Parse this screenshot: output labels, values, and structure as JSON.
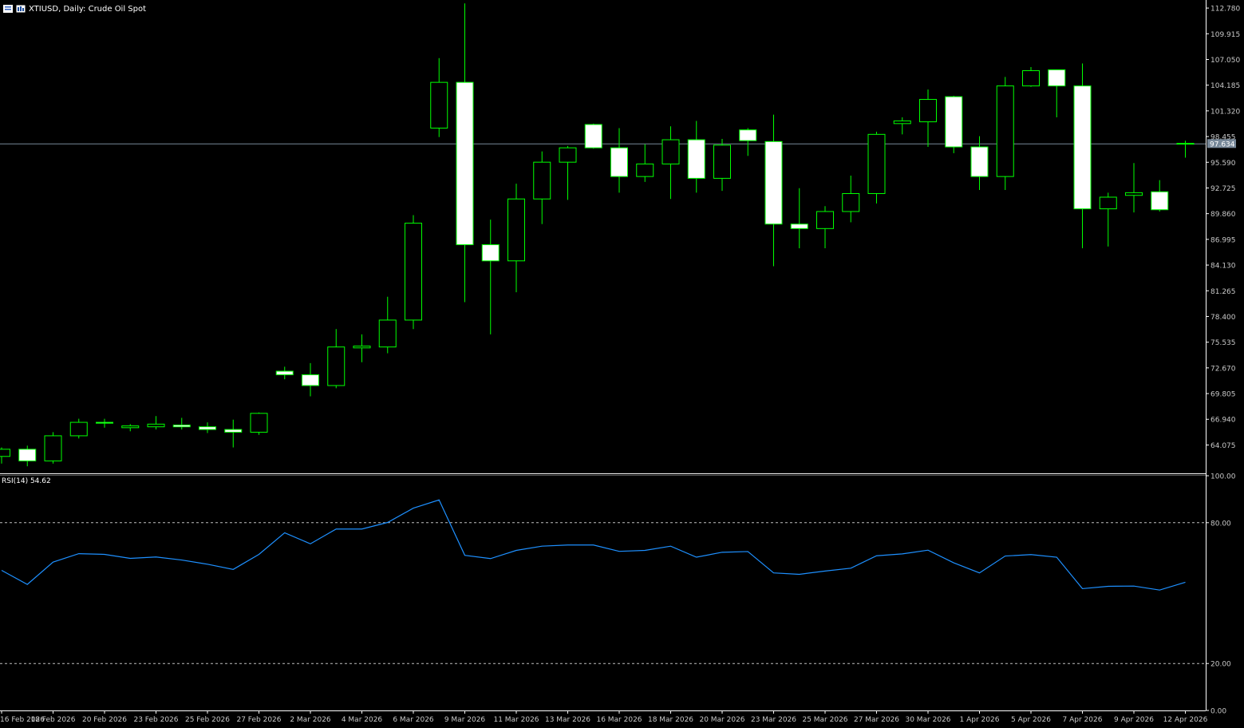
{
  "header": {
    "symbol_text": "XTIUSD, Daily:  Crude Oil Spot"
  },
  "rsi_label": "RSI(14) 54.62",
  "price_tag": "97.634",
  "colors": {
    "background": "#000000",
    "axis": "#ffffff",
    "bull_outline": "#00ff00",
    "bear_fill": "#ffffff",
    "current_price_line": "#778899",
    "rsi_line": "#1e90ff",
    "rsi_levels": "#c0c0c0"
  },
  "chart_data": [
    {
      "type": "candlestick",
      "title": "XTIUSD, Daily:  Crude Oil Spot",
      "ylim": [
        61.0,
        113.5
      ],
      "y_ticks": [
        "112.780",
        "109.915",
        "107.050",
        "104.185",
        "101.320",
        "98.455",
        "95.590",
        "92.725",
        "89.860",
        "86.995",
        "84.130",
        "81.265",
        "78.400",
        "75.535",
        "72.670",
        "69.805",
        "66.940",
        "64.075"
      ],
      "x_tick_labels": [
        "16 Feb 2026",
        "18 Feb 2026",
        "20 Feb 2026",
        "23 Feb 2026",
        "25 Feb 2026",
        "27 Feb 2026",
        "2 Mar 2026",
        "4 Mar 2026",
        "6 Mar 2026",
        "9 Mar 2026",
        "11 Mar 2026",
        "13 Mar 2026",
        "16 Mar 2026",
        "18 Mar 2026",
        "20 Mar 2026",
        "23 Mar 2026",
        "25 Mar 2026",
        "27 Mar 2026",
        "30 Mar 2026",
        "1 Apr 2026",
        "5 Apr 2026",
        "7 Apr 2026",
        "9 Apr 2026",
        "12 Apr 2026"
      ],
      "current_price": 97.634,
      "candles": [
        {
          "o": 62.8,
          "h": 63.8,
          "l": 62.0,
          "c": 63.6
        },
        {
          "o": 63.6,
          "h": 64.0,
          "l": 61.7,
          "c": 62.3
        },
        {
          "o": 62.3,
          "h": 65.5,
          "l": 62.0,
          "c": 65.1
        },
        {
          "o": 65.1,
          "h": 67.0,
          "l": 64.8,
          "c": 66.6
        },
        {
          "o": 66.6,
          "h": 67.0,
          "l": 66.0,
          "c": 66.5
        },
        {
          "o": 66.0,
          "h": 66.4,
          "l": 65.6,
          "c": 66.2
        },
        {
          "o": 66.1,
          "h": 67.3,
          "l": 65.8,
          "c": 66.4
        },
        {
          "o": 66.3,
          "h": 67.1,
          "l": 65.8,
          "c": 66.1
        },
        {
          "o": 66.1,
          "h": 66.6,
          "l": 65.4,
          "c": 65.8
        },
        {
          "o": 65.8,
          "h": 66.9,
          "l": 63.8,
          "c": 65.5
        },
        {
          "o": 65.5,
          "h": 67.7,
          "l": 65.2,
          "c": 67.6
        },
        {
          "o": 72.3,
          "h": 72.8,
          "l": 71.4,
          "c": 71.9
        },
        {
          "o": 71.9,
          "h": 73.2,
          "l": 69.5,
          "c": 70.7
        },
        {
          "o": 70.7,
          "h": 77.0,
          "l": 70.4,
          "c": 75.0
        },
        {
          "o": 74.9,
          "h": 76.4,
          "l": 73.3,
          "c": 75.1
        },
        {
          "o": 75.0,
          "h": 80.6,
          "l": 74.3,
          "c": 78.0
        },
        {
          "o": 78.0,
          "h": 89.7,
          "l": 77.0,
          "c": 88.8
        },
        {
          "o": 99.4,
          "h": 107.2,
          "l": 98.4,
          "c": 104.5
        },
        {
          "o": 104.5,
          "h": 113.3,
          "l": 80.0,
          "c": 86.4
        },
        {
          "o": 86.4,
          "h": 89.2,
          "l": 76.4,
          "c": 84.6
        },
        {
          "o": 84.6,
          "h": 93.2,
          "l": 81.1,
          "c": 91.5
        },
        {
          "o": 91.5,
          "h": 96.8,
          "l": 88.7,
          "c": 95.6
        },
        {
          "o": 95.6,
          "h": 97.4,
          "l": 91.4,
          "c": 97.2
        },
        {
          "o": 99.8,
          "h": 99.9,
          "l": 97.1,
          "c": 97.2
        },
        {
          "o": 97.2,
          "h": 99.4,
          "l": 92.2,
          "c": 94.0
        },
        {
          "o": 94.0,
          "h": 97.6,
          "l": 93.4,
          "c": 95.4
        },
        {
          "o": 95.4,
          "h": 99.6,
          "l": 91.5,
          "c": 98.1
        },
        {
          "o": 98.1,
          "h": 100.2,
          "l": 92.2,
          "c": 93.8
        },
        {
          "o": 93.8,
          "h": 98.2,
          "l": 92.4,
          "c": 97.5
        },
        {
          "o": 99.2,
          "h": 99.4,
          "l": 96.3,
          "c": 98.0
        },
        {
          "o": 97.9,
          "h": 100.9,
          "l": 84.0,
          "c": 88.7
        },
        {
          "o": 88.7,
          "h": 92.7,
          "l": 86.0,
          "c": 88.2
        },
        {
          "o": 88.2,
          "h": 90.7,
          "l": 86.0,
          "c": 90.1
        },
        {
          "o": 90.1,
          "h": 94.1,
          "l": 88.9,
          "c": 92.1
        },
        {
          "o": 92.1,
          "h": 99.0,
          "l": 91.0,
          "c": 98.7
        },
        {
          "o": 99.9,
          "h": 100.6,
          "l": 98.7,
          "c": 100.2
        },
        {
          "o": 100.1,
          "h": 103.7,
          "l": 97.3,
          "c": 102.6
        },
        {
          "o": 102.9,
          "h": 103.0,
          "l": 96.6,
          "c": 97.3
        },
        {
          "o": 97.3,
          "h": 98.5,
          "l": 92.5,
          "c": 94.0
        },
        {
          "o": 94.0,
          "h": 105.1,
          "l": 92.5,
          "c": 104.1
        },
        {
          "o": 104.1,
          "h": 106.2,
          "l": 104.0,
          "c": 105.8
        },
        {
          "o": 105.9,
          "h": 105.9,
          "l": 100.6,
          "c": 104.1
        },
        {
          "o": 104.1,
          "h": 106.6,
          "l": 86.0,
          "c": 90.4
        },
        {
          "o": 90.4,
          "h": 92.2,
          "l": 86.2,
          "c": 91.7
        },
        {
          "o": 91.9,
          "h": 95.5,
          "l": 90.0,
          "c": 92.2
        },
        {
          "o": 92.3,
          "h": 93.6,
          "l": 90.1,
          "c": 90.3
        },
        {
          "o": 97.6,
          "h": 98.0,
          "l": 96.1,
          "c": 97.7
        }
      ]
    },
    {
      "type": "line",
      "title": "RSI(14) 54.62",
      "ylim": [
        0,
        100
      ],
      "y_ticks": [
        "100.00",
        "80.00",
        "20.00",
        "0.00"
      ],
      "levels": [
        80,
        20
      ],
      "series": [
        {
          "values": [
            59.7,
            53.7,
            63.2,
            66.8,
            66.5,
            64.8,
            65.4,
            64.1,
            62.3,
            60.1,
            66.5,
            75.7,
            71.0,
            77.3,
            77.3,
            80.1,
            86.2,
            89.7,
            66.1,
            64.7,
            68.2,
            70.0,
            70.5,
            70.5,
            67.8,
            68.2,
            70.0,
            65.3,
            67.4,
            67.7,
            58.6,
            58.0,
            59.4,
            60.6,
            65.9,
            66.7,
            68.3,
            62.9,
            58.6,
            65.8,
            66.4,
            65.3,
            51.9,
            52.9,
            53.0,
            51.3,
            54.6
          ]
        }
      ]
    }
  ]
}
